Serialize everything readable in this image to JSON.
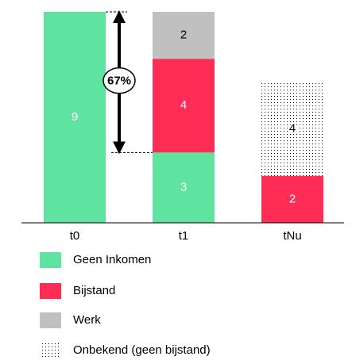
{
  "chart_data": {
    "type": "stacked_bar",
    "categories": [
      "t0",
      "t1",
      "tNu"
    ],
    "series": [
      {
        "name": "Geen Inkomen",
        "color": "#5fe3a1",
        "values": [
          9,
          3,
          null
        ]
      },
      {
        "name": "Bijstand",
        "color": "#ff2d55",
        "values": [
          null,
          4,
          2
        ]
      },
      {
        "name": "Werk",
        "color": "#c0c0c0",
        "values": [
          null,
          2,
          null
        ]
      },
      {
        "name": "Onbekend (geen bijstand)",
        "color": "#000000",
        "pattern": "dots",
        "values": [
          null,
          null,
          4
        ]
      }
    ],
    "annotation": "67%"
  }
}
